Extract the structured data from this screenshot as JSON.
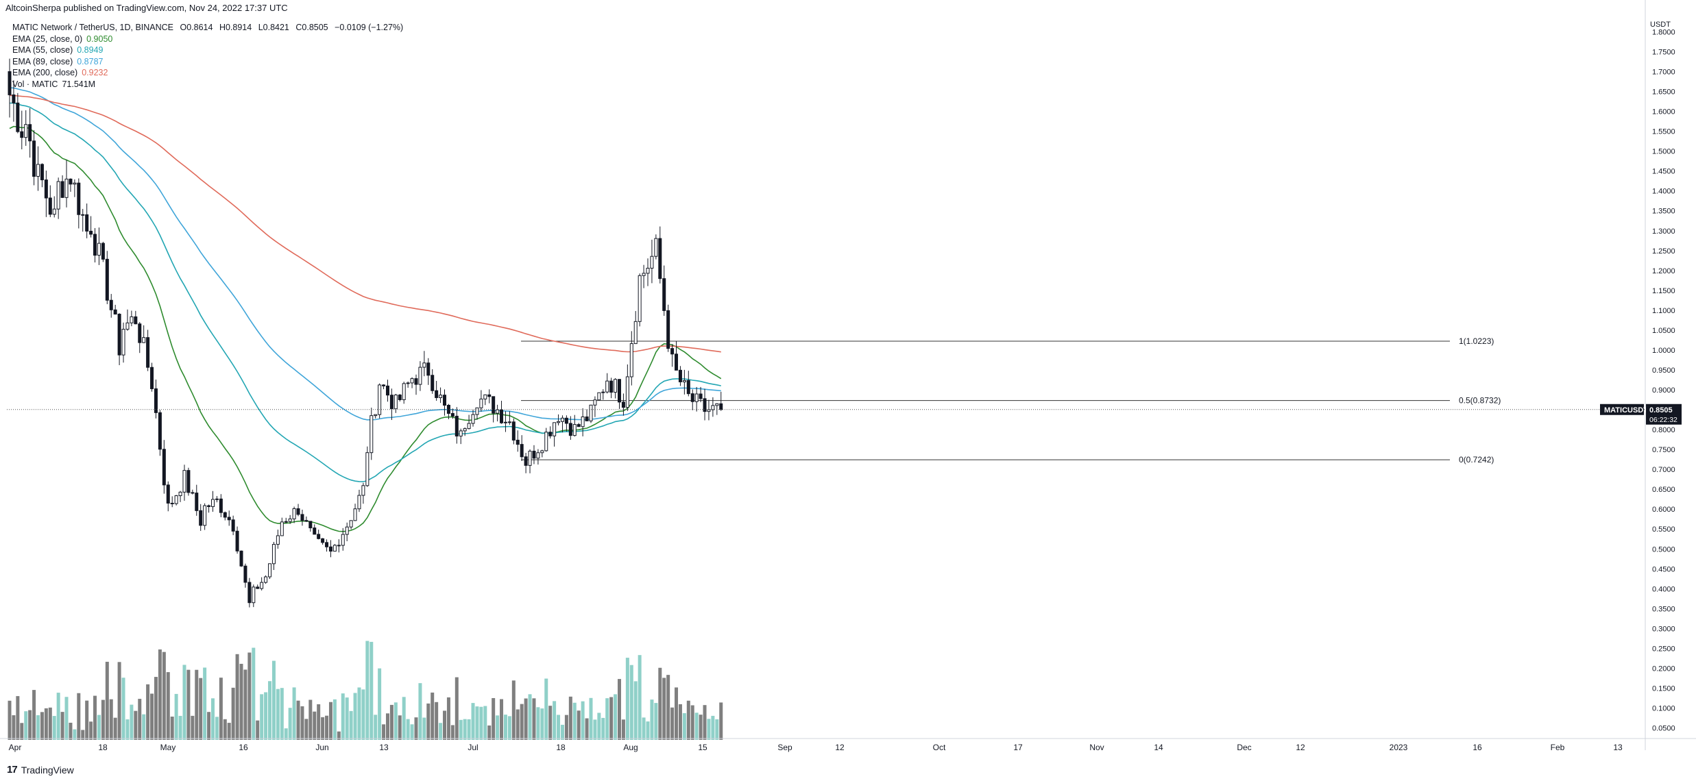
{
  "header": {
    "publish_line": "AltcoinSherpa published on TradingView.com, Nov 24, 2022 17:37 UTC"
  },
  "symbol": {
    "title": "MATIC Network / TetherUS, 1D, BINANCE",
    "open_label": "O0.8614",
    "high_label": "H0.8914",
    "low_label": "L0.8421",
    "close_label": "C0.8505",
    "change_label": "−0.0109 (−1.27%)"
  },
  "indicators": [
    {
      "label": "EMA (25, close, 0)",
      "value": "0.9050",
      "color": "#2e8b2e"
    },
    {
      "label": "EMA (55, close)",
      "value": "0.8949",
      "color": "#22a6b3"
    },
    {
      "label": "EMA (89, close)",
      "value": "0.8787",
      "color": "#3fa5d9"
    },
    {
      "label": "EMA (200, close)",
      "value": "0.9232",
      "color": "#e06a5a"
    },
    {
      "label": "Vol · MATIC",
      "value": "71.541M",
      "color": "#131722"
    }
  ],
  "axis": {
    "unit": "USDT",
    "y_ticks": [
      "1.8000",
      "1.7500",
      "1.7000",
      "1.6500",
      "1.6000",
      "1.5500",
      "1.5000",
      "1.4500",
      "1.4000",
      "1.3500",
      "1.3000",
      "1.2500",
      "1.2000",
      "1.1500",
      "1.1000",
      "1.0500",
      "1.0000",
      "0.9500",
      "0.9000",
      "0.8500",
      "0.8000",
      "0.7500",
      "0.7000",
      "0.6500",
      "0.6000",
      "0.5500",
      "0.5000",
      "0.4500",
      "0.4000",
      "0.3500",
      "0.3000",
      "0.2500",
      "0.2000",
      "0.1500",
      "0.1000",
      "0.0500"
    ],
    "x_ticks": [
      "Apr",
      "18",
      "May",
      "16",
      "Jun",
      "13",
      "Jul",
      "18",
      "Aug",
      "15",
      "Sep",
      "12",
      "Oct",
      "17",
      "Nov",
      "14",
      "Dec",
      "12",
      "2023",
      "16",
      "Feb",
      "13"
    ]
  },
  "price_tag": {
    "symbol": "MATICUSDT",
    "price": "0.8505",
    "countdown": "06:22:32"
  },
  "fib_levels": [
    {
      "label": "1(1.0223)",
      "value": 1.0223
    },
    {
      "label": "0.5(0.8732)",
      "value": 0.8732
    },
    {
      "label": "0(0.7242)",
      "value": 0.7242
    }
  ],
  "footer": {
    "logo": "17",
    "brand": "TradingView"
  },
  "chart_data": {
    "type": "candlestick",
    "title": "MATIC Network / TetherUS, 1D, BINANCE",
    "ylim": [
      0.02,
      1.83
    ],
    "last_close": 0.8505,
    "grid": false,
    "ohlc_anchors": [
      [
        1.67,
        1.56
      ],
      [
        1.62,
        1.43
      ],
      [
        1.45,
        1.33
      ],
      [
        1.4,
        1.44
      ],
      [
        1.44,
        1.3
      ],
      [
        1.36,
        1.19
      ],
      [
        1.2,
        1.01
      ],
      [
        1.05,
        1.08
      ],
      [
        1.08,
        0.92
      ],
      [
        0.92,
        0.6
      ],
      [
        0.6,
        0.68
      ],
      [
        0.68,
        0.57
      ],
      [
        0.6,
        0.62
      ],
      [
        0.62,
        0.56
      ],
      [
        0.56,
        0.36
      ],
      [
        0.38,
        0.43
      ],
      [
        0.43,
        0.57
      ],
      [
        0.57,
        0.6
      ],
      [
        0.6,
        0.52
      ],
      [
        0.52,
        0.49
      ],
      [
        0.49,
        0.56
      ],
      [
        0.56,
        0.65
      ],
      [
        0.7,
        0.92
      ],
      [
        0.92,
        0.86
      ],
      [
        0.86,
        0.93
      ],
      [
        0.93,
        0.95
      ],
      [
        0.95,
        0.85
      ],
      [
        0.85,
        0.78
      ],
      [
        0.8,
        0.88
      ],
      [
        0.88,
        0.86
      ],
      [
        0.86,
        0.82
      ],
      [
        0.82,
        0.72
      ],
      [
        0.72,
        0.77
      ],
      [
        0.77,
        0.84
      ],
      [
        0.84,
        0.8
      ],
      [
        0.8,
        0.84
      ],
      [
        0.84,
        0.93
      ],
      [
        0.93,
        0.88
      ],
      [
        0.88,
        1.18
      ],
      [
        1.18,
        1.25
      ],
      [
        1.25,
        0.96
      ],
      [
        0.96,
        0.88
      ],
      [
        0.88,
        0.85
      ],
      [
        0.85,
        0.8505
      ]
    ]
  }
}
